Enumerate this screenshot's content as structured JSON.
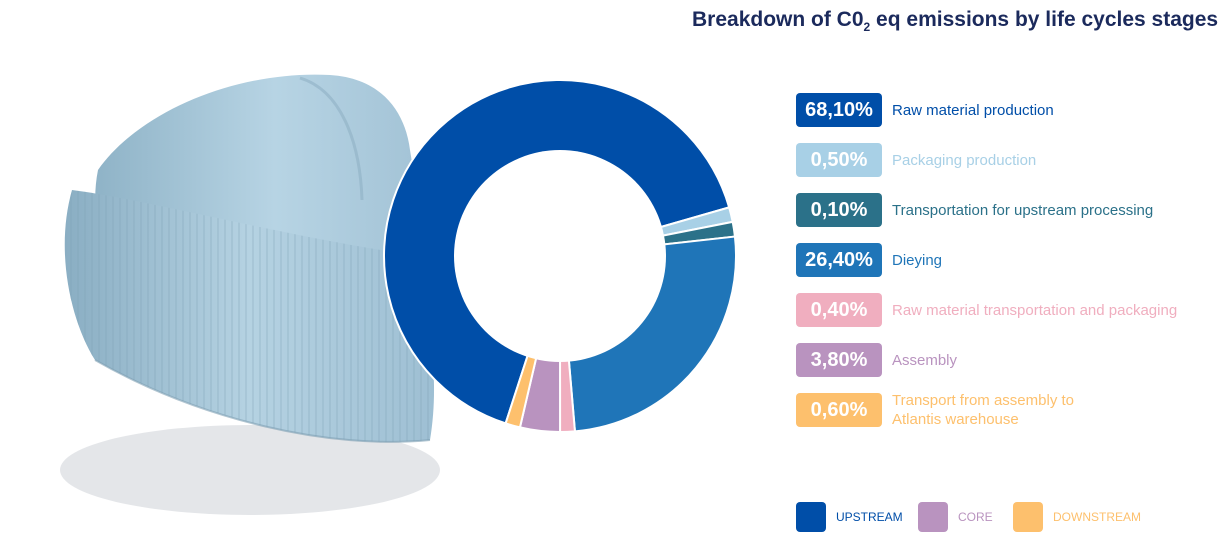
{
  "title_main": "Breakdown of C0",
  "title_sub": "2",
  "title_rest": " eq emissions by life cycles stages",
  "chart_data": {
    "type": "pie",
    "title": "Breakdown of C02 eq emissions by life cycles stages",
    "slices": [
      {
        "value_label": "68,10%",
        "label": "Raw material production",
        "value": 68.1,
        "color": "#004ea8"
      },
      {
        "value_label": "0,50%",
        "label": "Packaging production",
        "value": 0.5,
        "color": "#a8d0e6"
      },
      {
        "value_label": "0,10%",
        "label": "Transportation for upstream processing",
        "value": 0.1,
        "color": "#2b7189"
      },
      {
        "value_label": "26,40%",
        "label": "Dieying",
        "value": 26.4,
        "color": "#1f75b8"
      },
      {
        "value_label": "0,40%",
        "label": "Raw material transportation and packaging",
        "value": 0.4,
        "color": "#f0aebf"
      },
      {
        "value_label": "3,80%",
        "label": "Assembly",
        "value": 3.8,
        "color": "#b993bf"
      },
      {
        "value_label": "0,60%",
        "label": "Transport from assembly to Atlantis warehouse",
        "value": 0.6,
        "color": "#fdc06d"
      }
    ],
    "groups": [
      {
        "label": "UPSTREAM",
        "color": "#004ea8"
      },
      {
        "label": "CORE",
        "color": "#b993bf"
      },
      {
        "label": "DOWNSTREAM",
        "color": "#fdc06d"
      }
    ]
  }
}
